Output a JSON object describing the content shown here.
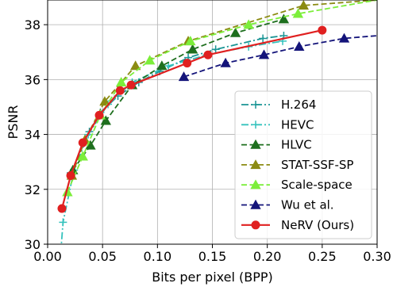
{
  "chart_data": {
    "type": "line",
    "xlabel": "Bits per pixel (BPP)",
    "ylabel": "PSNR",
    "xlim": [
      0.0,
      0.3
    ],
    "ylim": [
      30,
      38.9
    ],
    "xticks": [
      "0.00",
      "0.05",
      "0.10",
      "0.15",
      "0.20",
      "0.25",
      "0.30"
    ],
    "yticks": [
      "30",
      "32",
      "34",
      "36",
      "38"
    ],
    "grid": true,
    "legend_position": "lower-right",
    "series": [
      {
        "name": "H.264",
        "color": "#1a9595",
        "dash": "dashdot",
        "marker": "plus",
        "x": [
          0.021,
          0.038,
          0.048,
          0.064,
          0.083,
          0.102,
          0.128,
          0.153,
          0.196,
          0.215
        ],
        "y": [
          32.6,
          34.1,
          34.8,
          35.4,
          35.9,
          36.3,
          36.8,
          37.1,
          37.5,
          37.6
        ]
      },
      {
        "name": "HEVC",
        "color": "#35c2bd",
        "dash": "dashdot",
        "marker": "plus",
        "x": [
          0.011,
          0.014,
          0.024,
          0.037,
          0.055,
          0.077,
          0.11,
          0.145,
          0.183,
          0.214
        ],
        "y": [
          29.2,
          30.8,
          32.7,
          34.0,
          35.1,
          35.9,
          36.5,
          36.9,
          37.2,
          37.4
        ]
      },
      {
        "name": "HLVC",
        "color": "#1e6f1e",
        "dash": "dashed",
        "marker": "triangle",
        "x": [
          0.023,
          0.039,
          0.053,
          0.077,
          0.104,
          0.132,
          0.171,
          0.215
        ],
        "y": [
          32.7,
          33.6,
          34.5,
          35.8,
          36.5,
          37.1,
          37.7,
          38.2
        ]
      },
      {
        "name": "STAT-SSF-SP",
        "color": "#8b8b12",
        "dash": "dashed",
        "marker": "triangle",
        "x": [
          0.022,
          0.034,
          0.052,
          0.08,
          0.128,
          0.233,
          0.3
        ],
        "y": [
          32.5,
          33.8,
          35.2,
          36.5,
          37.4,
          38.7,
          38.9
        ]
      },
      {
        "name": "Scale-space",
        "color": "#7cee3a",
        "dash": "dashed",
        "marker": "triangle",
        "x": [
          0.018,
          0.032,
          0.048,
          0.067,
          0.093,
          0.13,
          0.183,
          0.228,
          0.3
        ],
        "y": [
          31.9,
          33.2,
          34.7,
          35.9,
          36.7,
          37.4,
          38.0,
          38.4,
          38.9
        ]
      },
      {
        "name": "Wu et al.",
        "color": "#14147a",
        "dash": "dashed",
        "marker": "triangle",
        "x": [
          0.124,
          0.162,
          0.197,
          0.229,
          0.27,
          0.3
        ],
        "y": [
          36.1,
          36.6,
          36.9,
          37.2,
          37.5,
          37.6
        ]
      },
      {
        "name": "NeRV (Ours)",
        "color": "#e02020",
        "dash": "solid",
        "marker": "circle",
        "x": [
          0.013,
          0.021,
          0.032,
          0.047,
          0.066,
          0.076,
          0.127,
          0.146,
          0.25
        ],
        "y": [
          31.3,
          32.5,
          33.7,
          34.7,
          35.6,
          35.8,
          36.6,
          36.9,
          37.8
        ]
      }
    ]
  }
}
